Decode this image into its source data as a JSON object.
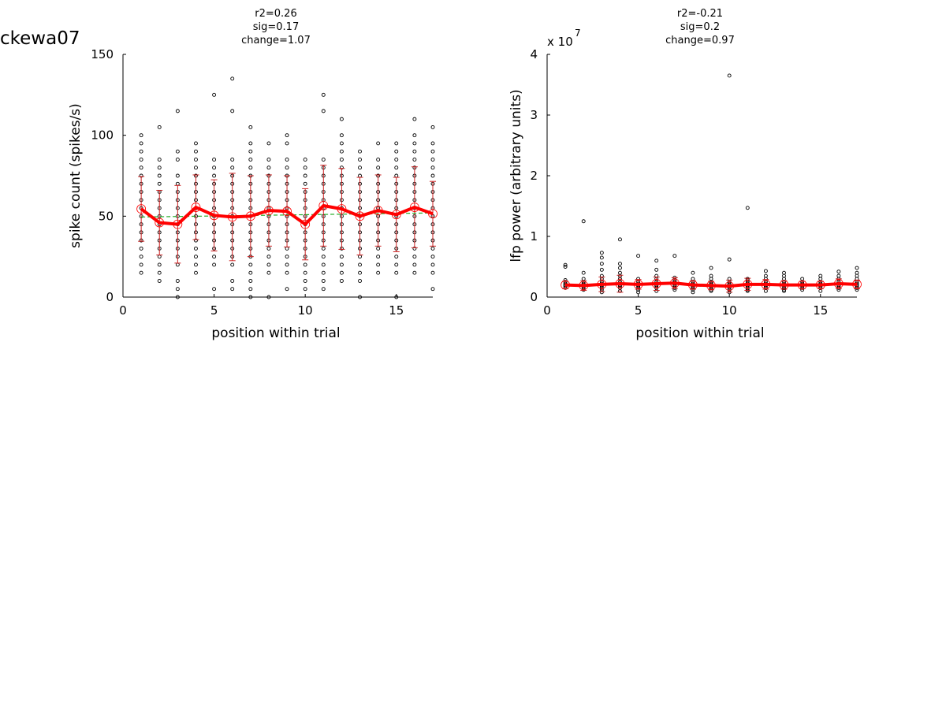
{
  "figure": {
    "label": "ckewa07"
  },
  "chart_data": [
    {
      "type": "scatter",
      "title": [
        "r2=0.26",
        "sig=0.17",
        "change=1.07"
      ],
      "xlabel": "position within trial",
      "ylabel": "spike count (spikes/s)",
      "xlim": [
        0,
        17
      ],
      "ylim": [
        0,
        150
      ],
      "xticks": [
        "0",
        "5",
        "10",
        "15"
      ],
      "yticks": [
        "0",
        "50",
        "100",
        "150"
      ],
      "scale_note": "",
      "x": [
        1,
        2,
        3,
        4,
        5,
        6,
        7,
        8,
        9,
        10,
        11,
        12,
        13,
        14,
        15,
        16,
        17
      ],
      "series": [
        {
          "name": "",
          "role": "mean",
          "values": [
            54.5,
            46,
            45,
            55.5,
            50.5,
            49.5,
            50,
            53.5,
            53,
            45,
            56.5,
            54.5,
            50,
            53.5,
            51,
            55.5,
            51.5
          ]
        },
        {
          "name": "",
          "role": "sd",
          "values": [
            20,
            20,
            24,
            20,
            22,
            27,
            25,
            22,
            22,
            22,
            25,
            25,
            24,
            22,
            23,
            25,
            20
          ]
        },
        {
          "name": "",
          "role": "fit",
          "values": [
            49.5,
            52
          ]
        }
      ],
      "scatter_points": [
        [
          15,
          20,
          25,
          30,
          35,
          40,
          45,
          50,
          55,
          60,
          65,
          70,
          75,
          80,
          85,
          90,
          95,
          100
        ],
        [
          10,
          15,
          20,
          25,
          30,
          35,
          40,
          45,
          50,
          55,
          60,
          65,
          70,
          75,
          80,
          85,
          105
        ],
        [
          0,
          5,
          10,
          20,
          25,
          30,
          35,
          40,
          45,
          50,
          55,
          60,
          65,
          70,
          75,
          85,
          90,
          115
        ],
        [
          15,
          20,
          25,
          30,
          35,
          40,
          45,
          50,
          55,
          60,
          65,
          70,
          75,
          80,
          85,
          90,
          95
        ],
        [
          5,
          20,
          25,
          30,
          35,
          40,
          45,
          50,
          55,
          60,
          65,
          70,
          75,
          80,
          85,
          125
        ],
        [
          5,
          10,
          20,
          25,
          30,
          35,
          40,
          45,
          50,
          55,
          60,
          65,
          70,
          75,
          80,
          85,
          115,
          135
        ],
        [
          0,
          5,
          10,
          15,
          20,
          25,
          30,
          35,
          40,
          45,
          50,
          55,
          60,
          65,
          70,
          75,
          80,
          85,
          90,
          95,
          105
        ],
        [
          0,
          15,
          20,
          25,
          30,
          35,
          40,
          45,
          50,
          55,
          60,
          65,
          70,
          75,
          80,
          85,
          95
        ],
        [
          5,
          15,
          20,
          25,
          30,
          35,
          40,
          45,
          50,
          55,
          60,
          65,
          70,
          75,
          80,
          85,
          95,
          100
        ],
        [
          5,
          10,
          15,
          20,
          25,
          30,
          35,
          40,
          45,
          50,
          55,
          60,
          65,
          70,
          75,
          80,
          85
        ],
        [
          5,
          10,
          15,
          20,
          25,
          30,
          35,
          40,
          45,
          50,
          55,
          60,
          65,
          70,
          75,
          80,
          85,
          115,
          125
        ],
        [
          10,
          15,
          20,
          25,
          30,
          35,
          40,
          45,
          50,
          55,
          60,
          65,
          70,
          75,
          80,
          85,
          90,
          95,
          100,
          110
        ],
        [
          0,
          10,
          15,
          20,
          25,
          30,
          35,
          40,
          45,
          50,
          55,
          60,
          65,
          70,
          75,
          80,
          85,
          90
        ],
        [
          15,
          20,
          25,
          30,
          35,
          40,
          45,
          50,
          55,
          60,
          65,
          70,
          75,
          80,
          85,
          95
        ],
        [
          0,
          15,
          20,
          25,
          30,
          35,
          40,
          45,
          50,
          55,
          60,
          65,
          70,
          75,
          80,
          85,
          90,
          95
        ],
        [
          15,
          20,
          25,
          30,
          35,
          40,
          45,
          50,
          55,
          60,
          65,
          70,
          75,
          80,
          85,
          90,
          95,
          100,
          110
        ],
        [
          5,
          15,
          20,
          25,
          30,
          35,
          40,
          45,
          50,
          55,
          60,
          65,
          70,
          75,
          80,
          85,
          90,
          95,
          105
        ]
      ],
      "colors": {
        "mean": "#ff0000",
        "sd": "#cc2222",
        "fit": "#22aa22",
        "points": "#000000"
      }
    },
    {
      "type": "scatter",
      "title": [
        "r2=-0.21",
        "sig=0.2",
        "change=0.97"
      ],
      "xlabel": "position within trial",
      "ylabel": "lfp power (arbitrary units)",
      "xlim": [
        0,
        17
      ],
      "ylim": [
        0,
        4
      ],
      "xticks": [
        "0",
        "5",
        "10",
        "15"
      ],
      "yticks": [
        "0",
        "1",
        "2",
        "3",
        "4"
      ],
      "scale_note": "x 10",
      "scale_exponent": "7",
      "x": [
        1,
        2,
        3,
        4,
        5,
        6,
        7,
        8,
        9,
        10,
        11,
        12,
        13,
        14,
        15,
        16,
        17
      ],
      "series": [
        {
          "name": "",
          "role": "mean",
          "values": [
            0.2,
            0.19,
            0.21,
            0.22,
            0.21,
            0.22,
            0.23,
            0.2,
            0.19,
            0.18,
            0.21,
            0.21,
            0.2,
            0.2,
            0.2,
            0.22,
            0.21
          ]
        },
        {
          "name": "",
          "role": "sd",
          "values": [
            0.06,
            0.08,
            0.12,
            0.14,
            0.08,
            0.11,
            0.09,
            0.07,
            0.07,
            0.1,
            0.1,
            0.08,
            0.07,
            0.06,
            0.06,
            0.08,
            0.07
          ]
        }
      ],
      "scatter_points": [
        [
          0.15,
          0.18,
          0.2,
          0.22,
          0.25,
          0.28,
          0.5,
          0.53
        ],
        [
          0.12,
          0.15,
          0.18,
          0.2,
          0.22,
          0.25,
          0.3,
          0.4,
          1.25
        ],
        [
          0.08,
          0.12,
          0.15,
          0.18,
          0.2,
          0.22,
          0.25,
          0.3,
          0.35,
          0.45,
          0.55,
          0.65,
          0.73
        ],
        [
          0.1,
          0.15,
          0.18,
          0.2,
          0.22,
          0.25,
          0.3,
          0.35,
          0.4,
          0.48,
          0.55,
          0.95
        ],
        [
          0.08,
          0.12,
          0.15,
          0.18,
          0.2,
          0.22,
          0.25,
          0.3,
          0.68
        ],
        [
          0.1,
          0.15,
          0.18,
          0.2,
          0.22,
          0.25,
          0.3,
          0.35,
          0.45,
          0.6
        ],
        [
          0.12,
          0.15,
          0.18,
          0.2,
          0.22,
          0.25,
          0.28,
          0.32,
          0.68
        ],
        [
          0.08,
          0.12,
          0.15,
          0.18,
          0.2,
          0.22,
          0.25,
          0.3,
          0.4
        ],
        [
          0.1,
          0.12,
          0.15,
          0.18,
          0.2,
          0.22,
          0.25,
          0.3,
          0.35,
          0.48
        ],
        [
          0.08,
          0.12,
          0.15,
          0.18,
          0.2,
          0.22,
          0.25,
          0.3,
          0.62,
          3.65
        ],
        [
          0.1,
          0.12,
          0.15,
          0.18,
          0.2,
          0.22,
          0.25,
          0.28,
          0.3,
          1.47
        ],
        [
          0.1,
          0.15,
          0.18,
          0.2,
          0.22,
          0.25,
          0.3,
          0.35,
          0.43
        ],
        [
          0.1,
          0.12,
          0.15,
          0.18,
          0.2,
          0.22,
          0.25,
          0.3,
          0.35,
          0.4
        ],
        [
          0.12,
          0.15,
          0.18,
          0.2,
          0.22,
          0.25,
          0.3
        ],
        [
          0.1,
          0.15,
          0.18,
          0.2,
          0.22,
          0.25,
          0.3,
          0.35
        ],
        [
          0.12,
          0.15,
          0.18,
          0.2,
          0.22,
          0.25,
          0.3,
          0.35,
          0.42
        ],
        [
          0.12,
          0.15,
          0.18,
          0.2,
          0.22,
          0.25,
          0.3,
          0.35,
          0.4,
          0.48
        ]
      ],
      "colors": {
        "mean": "#ff0000",
        "sd": "#cc2222",
        "points": "#000000"
      }
    }
  ]
}
